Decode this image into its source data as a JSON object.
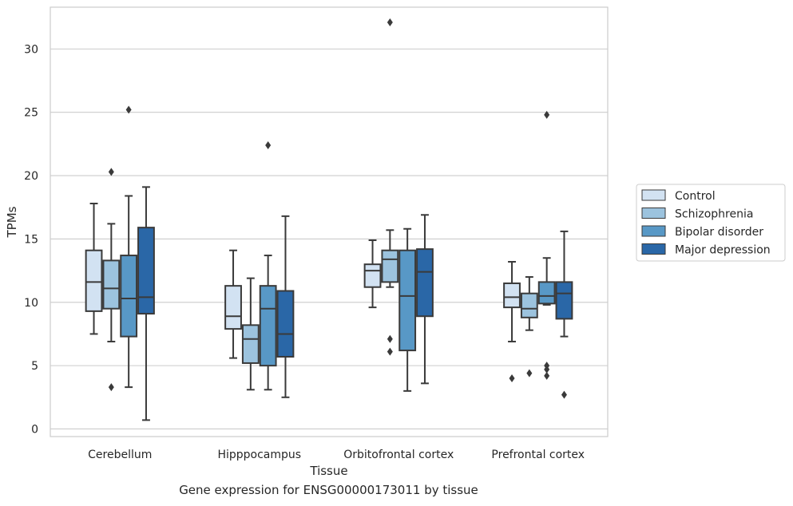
{
  "chart_data": {
    "type": "box",
    "title": "",
    "xlabel": "Tissue",
    "ylabel": "TPMs",
    "caption": "Gene expression for ENSG00000173011 by tissue",
    "ylim": [
      -0.6,
      33.3
    ],
    "yticks": [
      0,
      5,
      10,
      15,
      20,
      25,
      30
    ],
    "grid": "horizontal",
    "legend_position": "right",
    "categories": [
      "Cerebellum",
      "Hipppocampus",
      "Orbitofrontal cortex",
      "Prefrontal cortex"
    ],
    "series": [
      {
        "name": "Control",
        "color": "#d2e2f2",
        "boxes": [
          {
            "whisker_low": 7.5,
            "q1": 9.3,
            "median": 11.6,
            "q3": 14.1,
            "whisker_high": 17.8,
            "outliers": []
          },
          {
            "whisker_low": 5.6,
            "q1": 7.9,
            "median": 8.9,
            "q3": 11.3,
            "whisker_high": 14.1,
            "outliers": []
          },
          {
            "whisker_low": 9.6,
            "q1": 11.2,
            "median": 12.5,
            "q3": 13.0,
            "whisker_high": 14.9,
            "outliers": []
          },
          {
            "whisker_low": 6.9,
            "q1": 9.6,
            "median": 10.4,
            "q3": 11.5,
            "whisker_high": 13.2,
            "outliers": [
              4.0
            ]
          }
        ]
      },
      {
        "name": "Schizophrenia",
        "color": "#9cc3de",
        "boxes": [
          {
            "whisker_low": 6.9,
            "q1": 9.5,
            "median": 11.1,
            "q3": 13.3,
            "whisker_high": 16.2,
            "outliers": [
              20.3,
              3.3
            ]
          },
          {
            "whisker_low": 3.1,
            "q1": 5.2,
            "median": 7.1,
            "q3": 8.2,
            "whisker_high": 11.9,
            "outliers": []
          },
          {
            "whisker_low": 11.2,
            "q1": 11.6,
            "median": 13.4,
            "q3": 14.1,
            "whisker_high": 15.7,
            "outliers": [
              7.1,
              6.1,
              32.1
            ]
          },
          {
            "whisker_low": 7.8,
            "q1": 8.8,
            "median": 9.5,
            "q3": 10.7,
            "whisker_high": 12.0,
            "outliers": [
              4.4
            ]
          }
        ]
      },
      {
        "name": "Bipolar disorder",
        "color": "#5898c6",
        "boxes": [
          {
            "whisker_low": 3.3,
            "q1": 7.3,
            "median": 10.3,
            "q3": 13.7,
            "whisker_high": 18.4,
            "outliers": [
              25.2
            ]
          },
          {
            "whisker_low": 3.1,
            "q1": 5.0,
            "median": 9.5,
            "q3": 11.3,
            "whisker_high": 13.7,
            "outliers": [
              22.4
            ]
          },
          {
            "whisker_low": 3.0,
            "q1": 6.2,
            "median": 10.5,
            "q3": 14.1,
            "whisker_high": 15.8,
            "outliers": []
          },
          {
            "whisker_low": 9.8,
            "q1": 9.9,
            "median": 10.5,
            "q3": 11.6,
            "whisker_high": 13.5,
            "outliers": [
              24.8,
              5.0,
              4.7,
              4.2
            ]
          }
        ]
      },
      {
        "name": "Major depression",
        "color": "#2a67a7",
        "boxes": [
          {
            "whisker_low": 0.7,
            "q1": 9.1,
            "median": 10.4,
            "q3": 15.9,
            "whisker_high": 19.1,
            "outliers": []
          },
          {
            "whisker_low": 2.5,
            "q1": 5.7,
            "median": 7.5,
            "q3": 10.9,
            "whisker_high": 16.8,
            "outliers": []
          },
          {
            "whisker_low": 3.6,
            "q1": 8.9,
            "median": 12.4,
            "q3": 14.2,
            "whisker_high": 16.9,
            "outliers": []
          },
          {
            "whisker_low": 7.3,
            "q1": 8.7,
            "median": 10.7,
            "q3": 11.6,
            "whisker_high": 15.6,
            "outliers": [
              2.7
            ]
          }
        ]
      }
    ]
  },
  "colors": {
    "edge": "#3a3a3a",
    "grid": "#cccccc",
    "frame": "#cccccc"
  }
}
